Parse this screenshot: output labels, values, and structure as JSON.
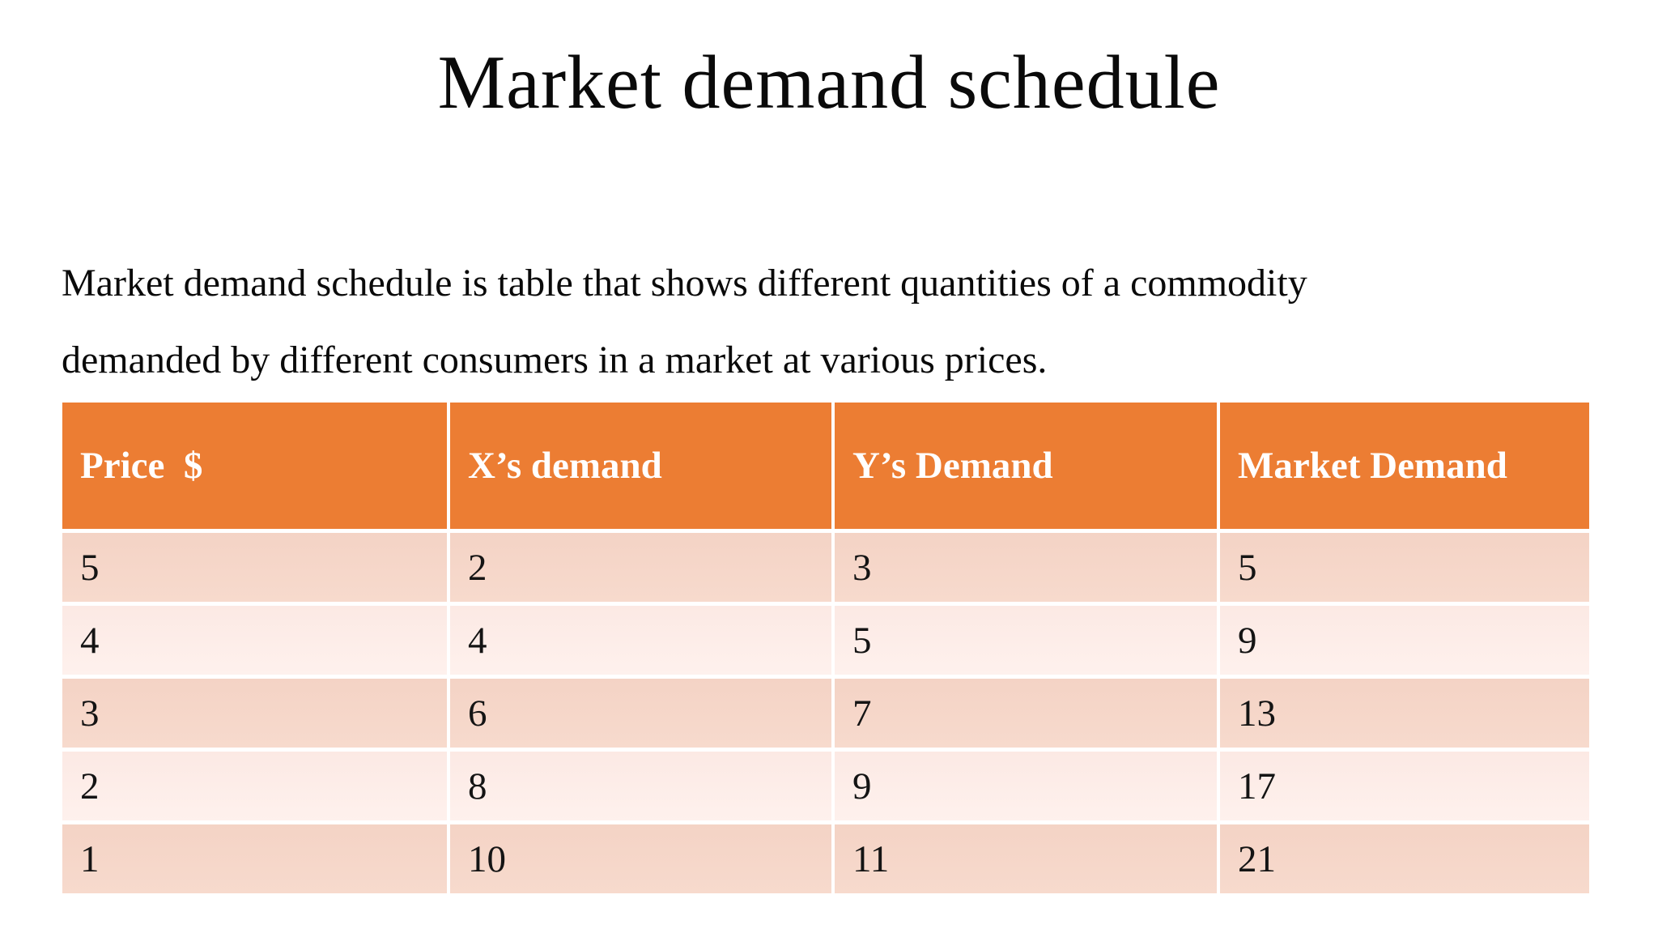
{
  "slide": {
    "title": "Market demand schedule",
    "description_lines": [
      "Market demand schedule is table that shows different quantities of a commodity",
      "demanded by different consumers in a market at various prices."
    ]
  },
  "table": {
    "headers": [
      "Price  $",
      "X’s demand",
      "Y’s Demand",
      "Market Demand"
    ],
    "rows": [
      [
        "5",
        "2",
        "3",
        "5"
      ],
      [
        "4",
        "4",
        "5",
        "9"
      ],
      [
        "3",
        "6",
        "7",
        "13"
      ],
      [
        "2",
        "8",
        "9",
        "17"
      ],
      [
        "1",
        "10",
        "11",
        "21"
      ]
    ]
  },
  "colors": {
    "header_bg": "#EC7D33",
    "header_text": "#FFFFFF",
    "row_band_dark": "#F4D3C5",
    "row_band_light": "#FCE9E4",
    "body_text": "#0A0A0A"
  }
}
